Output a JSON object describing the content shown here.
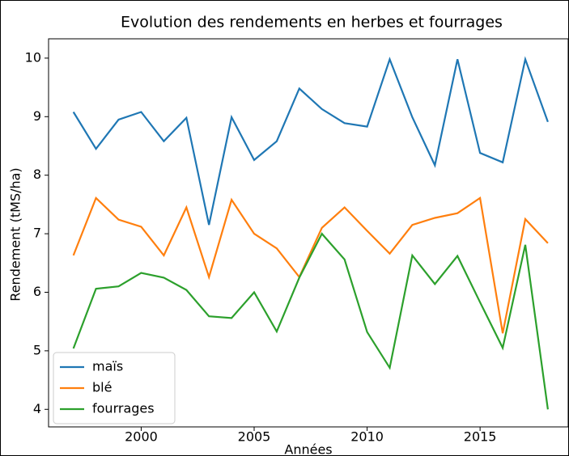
{
  "chart_data": {
    "type": "line",
    "title": "Evolution des rendements en herbes et fourrages",
    "x_label": "Années",
    "y_label": "Rendement (tMS/ha)",
    "x": [
      1997,
      1998,
      1999,
      2000,
      2001,
      2002,
      2003,
      2004,
      2005,
      2006,
      2007,
      2008,
      2009,
      2010,
      2011,
      2012,
      2013,
      2014,
      2015,
      2016,
      2017,
      2018
    ],
    "series": [
      {
        "name": "maïs",
        "color": "#1f77b4",
        "values": [
          9.08,
          8.45,
          8.95,
          9.08,
          8.58,
          8.98,
          7.15,
          8.99,
          8.26,
          8.58,
          9.48,
          9.13,
          8.89,
          8.83,
          9.98,
          8.99,
          8.17,
          9.98,
          8.38,
          8.22,
          9.98,
          8.91
        ]
      },
      {
        "name": "blé",
        "color": "#ff7f0e",
        "values": [
          6.63,
          7.61,
          7.24,
          7.12,
          6.63,
          7.45,
          6.26,
          7.58,
          7.0,
          6.75,
          6.26,
          7.1,
          7.45,
          7.05,
          6.66,
          7.15,
          7.27,
          7.35,
          7.61,
          5.3,
          7.25,
          6.84
        ]
      },
      {
        "name": "fourrages",
        "color": "#2ca02c",
        "values": [
          5.04,
          6.06,
          6.1,
          6.33,
          6.25,
          6.04,
          5.59,
          5.56,
          6.0,
          5.33,
          6.25,
          7.0,
          6.56,
          5.32,
          4.71,
          6.63,
          6.14,
          6.62,
          5.83,
          5.05,
          6.81,
          4.0
        ]
      }
    ],
    "xlim": [
      1995.9,
      2018.9
    ],
    "ylim": [
      3.7,
      10.33
    ],
    "xticks": [
      2000,
      2005,
      2010,
      2015
    ],
    "yticks": [
      4,
      5,
      6,
      7,
      8,
      9,
      10
    ],
    "legend": "lower left"
  }
}
